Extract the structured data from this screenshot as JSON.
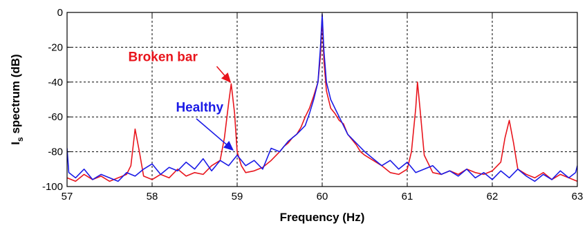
{
  "chart_data": {
    "type": "line",
    "xlabel": "Frequency (Hz)",
    "ylabel_main": "I",
    "ylabel_sub": "s",
    "ylabel_rest": " spectrum (dB)",
    "xlim": [
      57,
      63
    ],
    "ylim": [
      -100,
      0
    ],
    "xticks": [
      57,
      58,
      59,
      60,
      61,
      62,
      63
    ],
    "yticks": [
      0,
      -20,
      -40,
      -60,
      -80,
      -100
    ],
    "grid": true,
    "colors": {
      "broken": "#e8141c",
      "healthy": "#1a1ae6",
      "arrow_broken": "#e8141c",
      "arrow_healthy": "#1a1ae6"
    },
    "annotations": [
      {
        "id": "broken",
        "text": "Broken bar",
        "color": "#e8141c",
        "text_x": 57.72,
        "text_y": -28,
        "arrow_from": [
          58.76,
          -31
        ],
        "arrow_to": [
          58.92,
          -40
        ]
      },
      {
        "id": "healthy",
        "text": "Healthy",
        "color": "#1a1ae6",
        "text_x": 58.28,
        "text_y": -57,
        "arrow_from": [
          58.52,
          -61
        ],
        "arrow_to": [
          58.95,
          -79
        ]
      }
    ],
    "series": [
      {
        "id": "broken",
        "color": "#e8141c",
        "x": [
          57.0,
          57.1,
          57.2,
          57.3,
          57.4,
          57.5,
          57.6,
          57.7,
          57.75,
          57.8,
          57.85,
          57.9,
          58.0,
          58.1,
          58.2,
          58.3,
          58.4,
          58.5,
          58.6,
          58.7,
          58.8,
          58.85,
          58.9,
          58.93,
          58.97,
          59.0,
          59.05,
          59.1,
          59.2,
          59.3,
          59.4,
          59.5,
          59.55,
          59.6,
          59.65,
          59.7,
          59.75,
          59.8,
          59.85,
          59.9,
          59.95,
          59.98,
          60.0,
          60.02,
          60.05,
          60.1,
          60.15,
          60.2,
          60.25,
          60.3,
          60.35,
          60.4,
          60.45,
          60.5,
          60.6,
          60.7,
          60.8,
          60.9,
          61.0,
          61.05,
          61.1,
          61.12,
          61.15,
          61.2,
          61.3,
          61.4,
          61.5,
          61.6,
          61.7,
          61.8,
          61.9,
          62.0,
          62.1,
          62.15,
          62.2,
          62.25,
          62.3,
          62.4,
          62.5,
          62.6,
          62.7,
          62.8,
          62.9,
          63.0
        ],
        "y": [
          -95,
          -97,
          -93,
          -96,
          -94,
          -97,
          -95,
          -93,
          -88,
          -67,
          -80,
          -94,
          -96,
          -93,
          -95,
          -90,
          -94,
          -92,
          -93,
          -88,
          -85,
          -72,
          -52,
          -41,
          -58,
          -80,
          -88,
          -92,
          -91,
          -89,
          -85,
          -80,
          -77,
          -75,
          -72,
          -70,
          -66,
          -60,
          -55,
          -48,
          -40,
          -25,
          -2,
          -28,
          -45,
          -55,
          -58,
          -62,
          -64,
          -70,
          -73,
          -76,
          -80,
          -82,
          -85,
          -88,
          -92,
          -93,
          -90,
          -80,
          -55,
          -40,
          -55,
          -82,
          -92,
          -93,
          -91,
          -93,
          -90,
          -92,
          -93,
          -91,
          -86,
          -72,
          -62,
          -75,
          -90,
          -93,
          -95,
          -92,
          -96,
          -93,
          -95,
          -97
        ]
      },
      {
        "id": "healthy",
        "color": "#1a1ae6",
        "x": [
          57.0,
          57.02,
          57.1,
          57.2,
          57.3,
          57.4,
          57.5,
          57.6,
          57.7,
          57.8,
          57.9,
          58.0,
          58.1,
          58.2,
          58.3,
          58.4,
          58.5,
          58.6,
          58.7,
          58.8,
          58.9,
          59.0,
          59.1,
          59.2,
          59.3,
          59.4,
          59.5,
          59.6,
          59.7,
          59.8,
          59.85,
          59.9,
          59.95,
          59.98,
          60.0,
          60.02,
          60.05,
          60.1,
          60.15,
          60.2,
          60.3,
          60.4,
          60.5,
          60.6,
          60.7,
          60.8,
          60.9,
          61.0,
          61.1,
          61.2,
          61.3,
          61.4,
          61.5,
          61.6,
          61.7,
          61.8,
          61.9,
          62.0,
          62.1,
          62.2,
          62.3,
          62.4,
          62.5,
          62.6,
          62.7,
          62.8,
          62.9,
          62.98,
          63.0
        ],
        "y": [
          -78,
          -92,
          -95,
          -90,
          -96,
          -93,
          -95,
          -97,
          -92,
          -94,
          -90,
          -87,
          -93,
          -89,
          -91,
          -86,
          -90,
          -84,
          -91,
          -85,
          -88,
          -82,
          -88,
          -85,
          -90,
          -78,
          -80,
          -74,
          -70,
          -65,
          -58,
          -50,
          -40,
          -20,
          -1,
          -22,
          -40,
          -50,
          -55,
          -60,
          -70,
          -75,
          -80,
          -84,
          -88,
          -85,
          -90,
          -86,
          -92,
          -90,
          -88,
          -93,
          -91,
          -94,
          -90,
          -95,
          -92,
          -96,
          -91,
          -95,
          -90,
          -94,
          -97,
          -93,
          -96,
          -91,
          -95,
          -92,
          -88
        ]
      }
    ]
  }
}
